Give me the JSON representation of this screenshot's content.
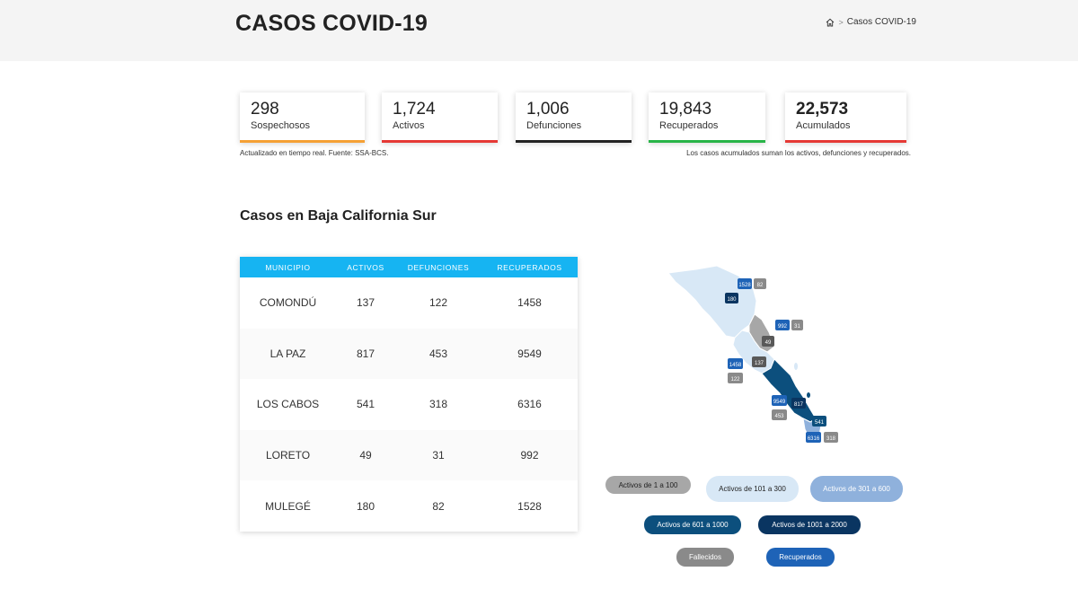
{
  "header": {
    "title": "CASOS COVID-19",
    "breadcrumb": {
      "home_icon": "home-icon",
      "separator": ">",
      "current": "Casos COVID-19"
    }
  },
  "stats": [
    {
      "value": "298",
      "label": "Sospechosos",
      "color": "#f5a034"
    },
    {
      "value": "1,724",
      "label": "Activos",
      "color": "#e53935"
    },
    {
      "value": "1,006",
      "label": "Defunciones",
      "color": "#222222"
    },
    {
      "value": "19,843",
      "label": "Recuperados",
      "color": "#28b447"
    },
    {
      "value": "22,573",
      "label": "Acumulados",
      "color": "#e53935"
    }
  ],
  "notes": {
    "left": "Actualizado en tiempo real. Fuente: SSA-BCS.",
    "right": "Los casos acumulados suman los activos, defunciones y recuperados."
  },
  "section": {
    "title": "Casos en Baja California Sur"
  },
  "table": {
    "headers": [
      "MUNICIPIO",
      "ACTIVOS",
      "DEFUNCIONES",
      "RECUPERADOS"
    ],
    "rows": [
      [
        "COMONDÚ",
        "137",
        "122",
        "1458"
      ],
      [
        "LA PAZ",
        "817",
        "453",
        "9549"
      ],
      [
        "LOS CABOS",
        "541",
        "318",
        "6316"
      ],
      [
        "LORETO",
        "49",
        "31",
        "992"
      ],
      [
        "MULEGÉ",
        "180",
        "82",
        "1528"
      ]
    ]
  },
  "map_badges": {
    "mulege_recuperados": "1528",
    "mulege_defunciones": "82",
    "mulege_activos": "180",
    "loreto_recuperados": "992",
    "loreto_defunciones": "31",
    "loreto_activos": "49",
    "comondu_recuperados": "1458",
    "comondu_activos": "137",
    "comondu_defunciones": "122",
    "lapaz_recuperados": "9549",
    "lapaz_activos": "817",
    "lapaz_defunciones": "453",
    "loscabos_activos": "541",
    "loscabos_recuperados": "6316",
    "loscabos_defunciones": "318"
  },
  "legend": {
    "l1": "Activos de 1 a 100",
    "l2": "Activos de 101 a 300",
    "l3": "Activos de 301 a 600",
    "l4": "Activos de 601 a 1000",
    "l5": "Activos de 1001 a 2000",
    "fallecidos": "Fallecidos",
    "recuperados": "Recuperados"
  },
  "colors": {
    "table_header": "#16b4f2",
    "range_1_100": "#a7a7a7",
    "range_101_300": "#d8e8f6",
    "range_301_600": "#8fb1dc",
    "range_601_1000": "#0c4f7d",
    "range_1001_2000": "#0a3561",
    "fallecidos": "#8a8a8a",
    "recuperados": "#1e63b7"
  }
}
